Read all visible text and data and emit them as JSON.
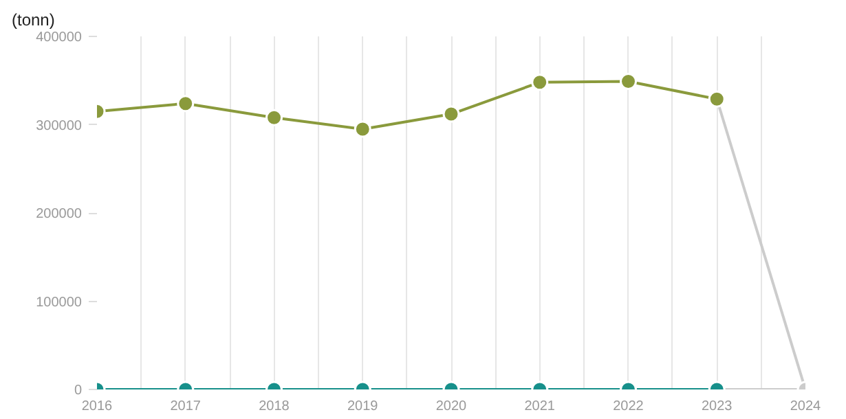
{
  "chart_data": {
    "type": "line",
    "ylabel": "(tonn)",
    "x": [
      2016,
      2017,
      2018,
      2019,
      2020,
      2021,
      2022,
      2023,
      2024
    ],
    "series": [
      {
        "color": "#cccccc",
        "marker": "none",
        "values": [
          null,
          null,
          null,
          null,
          null,
          null,
          null,
          329000,
          0
        ]
      },
      {
        "color": "#cccccc",
        "marker": "none",
        "values": [
          null,
          null,
          null,
          null,
          null,
          null,
          null,
          0,
          0
        ]
      },
      {
        "color": "#cccccc",
        "type": "scatter",
        "marker": "circle",
        "values": [
          null,
          null,
          null,
          null,
          null,
          null,
          null,
          null,
          0
        ]
      },
      {
        "color": "#8a9a3c",
        "marker": "circle",
        "values": [
          315000,
          324000,
          308000,
          295000,
          312000,
          348000,
          349000,
          329000,
          null
        ]
      },
      {
        "color": "#17908b",
        "marker": "circle",
        "values": [
          0,
          0,
          0,
          0,
          0,
          0,
          0,
          0,
          null
        ]
      }
    ],
    "xlim": [
      2016,
      2024
    ],
    "ylim": [
      0,
      400000
    ],
    "xticks": [
      2016,
      {
        "value": 2016.5,
        "label": null
      },
      2017,
      {
        "value": 2017.5,
        "label": null
      },
      2018,
      {
        "value": 2018.5,
        "label": null
      },
      2019,
      {
        "value": 2019.5,
        "label": null
      },
      2020,
      {
        "value": 2020.5,
        "label": null
      },
      2021,
      {
        "value": 2021.5,
        "label": null
      },
      2022,
      {
        "value": 2022.5,
        "label": null
      },
      2023,
      {
        "value": 2023.5,
        "label": null
      },
      2024
    ],
    "yticks": [
      0,
      100000,
      200000,
      300000,
      400000
    ],
    "grid": "x"
  }
}
